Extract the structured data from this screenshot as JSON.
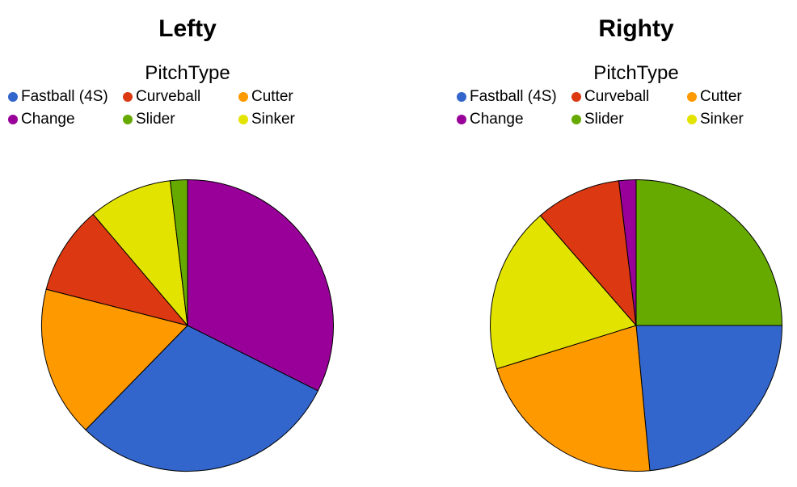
{
  "page": {
    "background": "#ffffff"
  },
  "chart_data": [
    {
      "type": "pie",
      "title": "Lefty",
      "legend": {
        "title": "PitchType",
        "position": "top",
        "columns": 3,
        "items": [
          {
            "label": "Fastball (4S)",
            "color": "#3366CC"
          },
          {
            "label": "Curveball",
            "color": "#DC3912"
          },
          {
            "label": "Cutter",
            "color": "#FF9900"
          },
          {
            "label": "Change",
            "color": "#990099"
          },
          {
            "label": "Slider",
            "color": "#66AA00"
          },
          {
            "label": "Sinker",
            "color": "#E3E300"
          }
        ]
      },
      "units": "percent",
      "start_angle_deg": 0,
      "direction": "clockwise",
      "slices": [
        {
          "label": "Change",
          "color": "#990099",
          "value": 32.4
        },
        {
          "label": "Fastball (4S)",
          "color": "#3366CC",
          "value": 29.9
        },
        {
          "label": "Cutter",
          "color": "#FF9900",
          "value": 16.7
        },
        {
          "label": "Curveball",
          "color": "#DC3912",
          "value": 9.8
        },
        {
          "label": "Sinker",
          "color": "#E3E300",
          "value": 9.3
        },
        {
          "label": "Slider",
          "color": "#66AA00",
          "value": 1.9
        }
      ]
    },
    {
      "type": "pie",
      "title": "Righty",
      "legend": {
        "title": "PitchType",
        "position": "top",
        "columns": 3,
        "items": [
          {
            "label": "Fastball (4S)",
            "color": "#3366CC"
          },
          {
            "label": "Curveball",
            "color": "#DC3912"
          },
          {
            "label": "Cutter",
            "color": "#FF9900"
          },
          {
            "label": "Change",
            "color": "#990099"
          },
          {
            "label": "Slider",
            "color": "#66AA00"
          },
          {
            "label": "Sinker",
            "color": "#E3E300"
          }
        ]
      },
      "units": "percent",
      "start_angle_deg": 0,
      "direction": "clockwise",
      "slices": [
        {
          "label": "Slider",
          "color": "#66AA00",
          "value": 25.0
        },
        {
          "label": "Fastball (4S)",
          "color": "#3366CC",
          "value": 23.5
        },
        {
          "label": "Cutter",
          "color": "#FF9900",
          "value": 21.7
        },
        {
          "label": "Sinker",
          "color": "#E3E300",
          "value": 18.4
        },
        {
          "label": "Curveball",
          "color": "#DC3912",
          "value": 9.5
        },
        {
          "label": "Change",
          "color": "#990099",
          "value": 1.9
        }
      ]
    }
  ]
}
